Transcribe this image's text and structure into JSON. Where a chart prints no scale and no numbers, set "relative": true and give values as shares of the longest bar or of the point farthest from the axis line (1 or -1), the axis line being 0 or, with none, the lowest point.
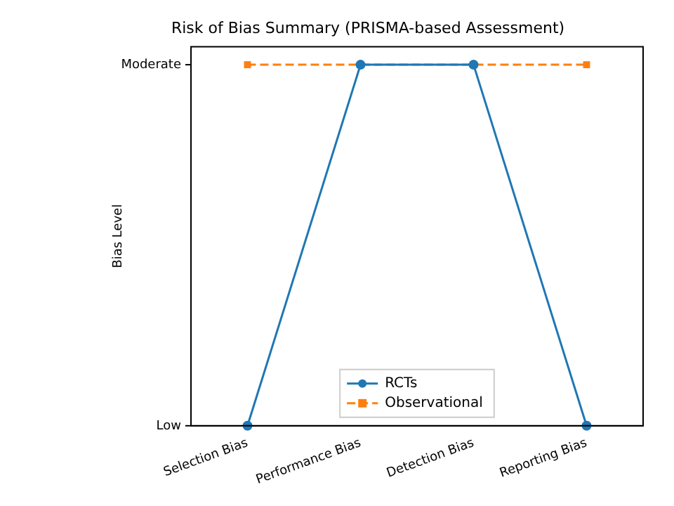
{
  "chart_data": {
    "type": "line",
    "title": "Risk of Bias Summary (PRISMA-based Assessment)",
    "ylabel": "Bias Level",
    "categories": [
      "Selection Bias",
      "Performance Bias",
      "Detection Bias",
      "Reporting Bias"
    ],
    "relative": true,
    "series": [
      {
        "name": "RCTs",
        "color": "#1f77b4",
        "values": [
          0,
          1,
          1,
          0
        ],
        "marker": "circle",
        "line_style": "solid"
      },
      {
        "name": "Observational",
        "color": "#ff7f0e",
        "values": [
          1,
          1,
          1,
          1
        ],
        "marker": "square",
        "line_style": "dashed"
      }
    ],
    "annotations": [
      "Low",
      "Moderate"
    ],
    "grid": false,
    "legend": "bottom"
  }
}
